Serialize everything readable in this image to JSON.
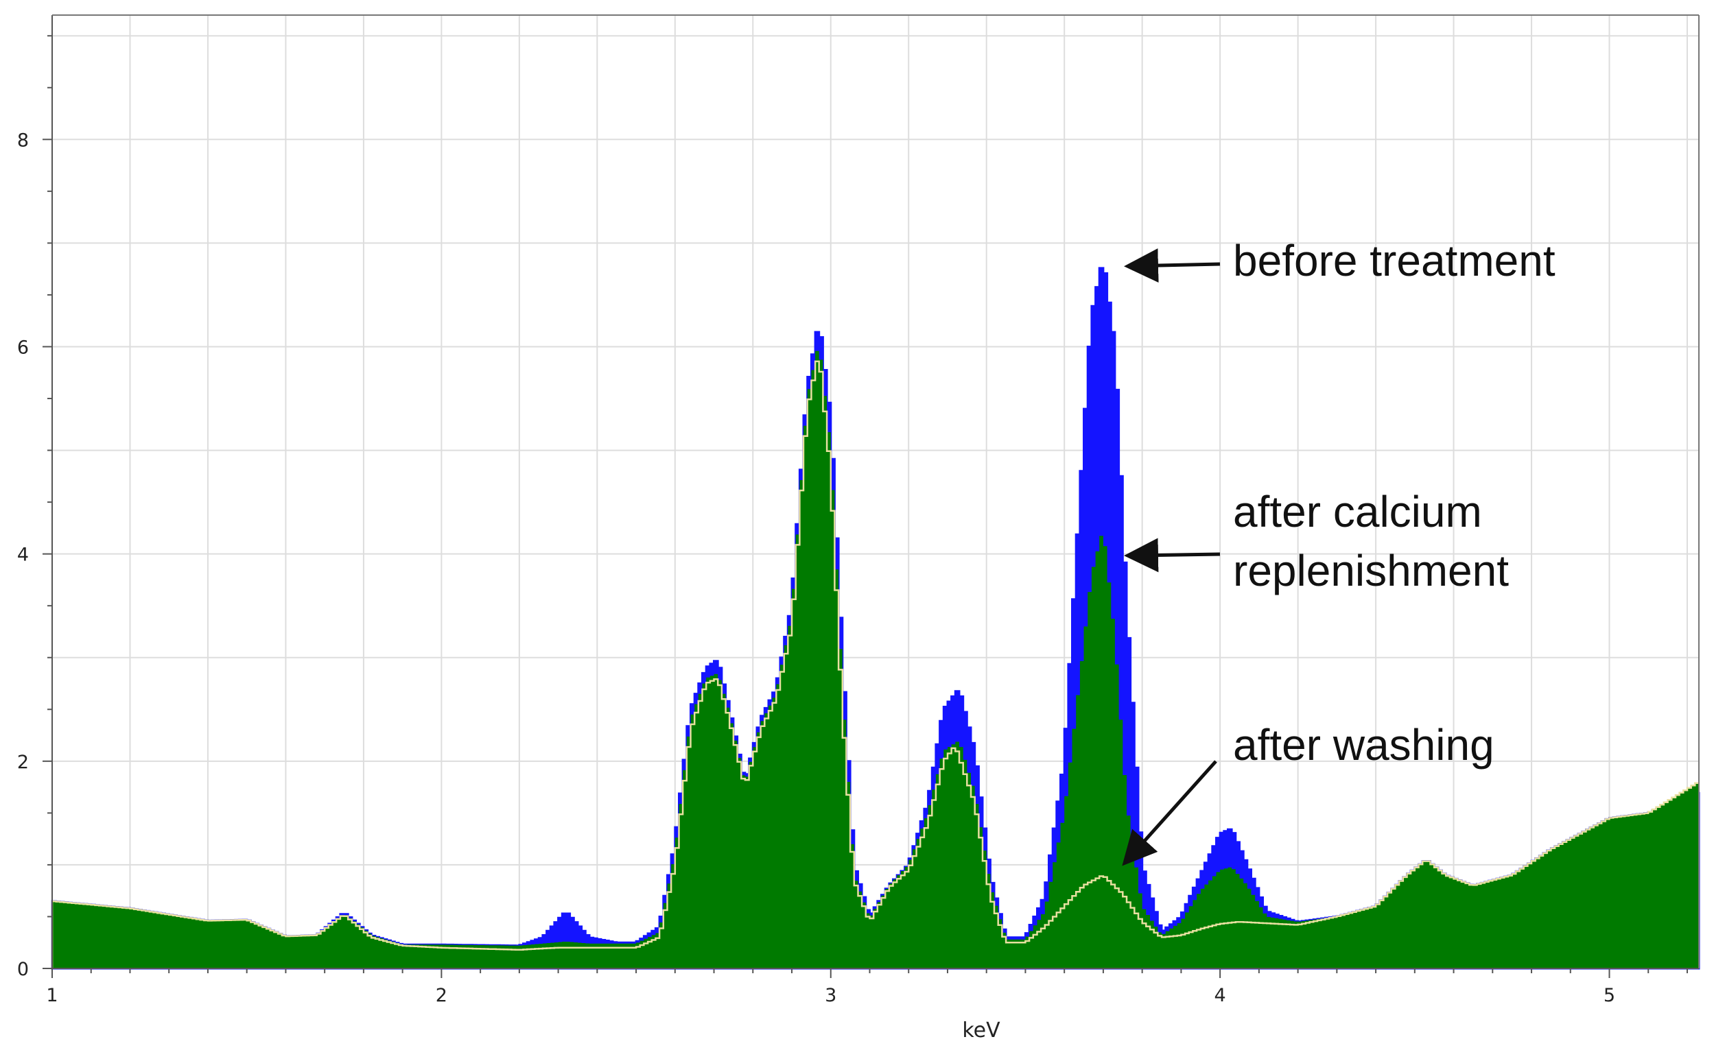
{
  "chart_data": {
    "type": "area",
    "title": "",
    "xlabel": "keV",
    "ylabel": "",
    "xlim": [
      1.0,
      5.23
    ],
    "ylim": [
      0,
      9.2
    ],
    "grid": true,
    "x_ticks": [
      1,
      2,
      3,
      4,
      5
    ],
    "y_ticks": [
      0,
      2,
      4,
      6,
      8
    ],
    "colors": {
      "before": "#1414ff",
      "calcium": "#007a00",
      "washing_line": "#e8e0a0"
    },
    "series": [
      {
        "name": "before treatment",
        "color": "#1414ff",
        "x": [
          1.0,
          1.2,
          1.4,
          1.5,
          1.6,
          1.68,
          1.75,
          1.82,
          1.9,
          2.0,
          2.2,
          2.26,
          2.32,
          2.38,
          2.45,
          2.5,
          2.56,
          2.6,
          2.64,
          2.68,
          2.71,
          2.74,
          2.78,
          2.82,
          2.86,
          2.9,
          2.94,
          2.97,
          3.0,
          3.03,
          3.06,
          3.1,
          3.15,
          3.2,
          3.25,
          3.29,
          3.33,
          3.37,
          3.41,
          3.45,
          3.5,
          3.55,
          3.6,
          3.64,
          3.67,
          3.7,
          3.73,
          3.76,
          3.8,
          3.85,
          3.9,
          3.95,
          4.0,
          4.03,
          4.07,
          4.12,
          4.2,
          4.3,
          4.4,
          4.48,
          4.53,
          4.58,
          4.65,
          4.75,
          4.85,
          5.0,
          5.1,
          5.23
        ],
        "y": [
          0.65,
          0.58,
          0.46,
          0.47,
          0.31,
          0.32,
          0.54,
          0.32,
          0.23,
          0.23,
          0.22,
          0.3,
          0.55,
          0.3,
          0.25,
          0.25,
          0.4,
          1.2,
          2.5,
          2.9,
          2.98,
          2.5,
          1.8,
          2.4,
          2.7,
          3.5,
          5.6,
          6.25,
          5.3,
          3.0,
          1.0,
          0.5,
          0.8,
          1.0,
          1.6,
          2.5,
          2.7,
          2.1,
          0.9,
          0.3,
          0.3,
          0.7,
          2.0,
          4.5,
          6.3,
          6.85,
          6.0,
          3.5,
          1.0,
          0.35,
          0.5,
          0.9,
          1.3,
          1.35,
          1.0,
          0.55,
          0.45,
          0.5,
          0.6,
          0.9,
          1.05,
          0.9,
          0.8,
          0.9,
          1.15,
          1.45,
          1.5,
          1.7
        ]
      },
      {
        "name": "after calcium replenishment",
        "color": "#007a00",
        "x": [
          1.0,
          1.2,
          1.4,
          1.5,
          1.6,
          1.68,
          1.75,
          1.82,
          1.9,
          2.0,
          2.2,
          2.26,
          2.32,
          2.38,
          2.45,
          2.5,
          2.56,
          2.6,
          2.64,
          2.68,
          2.71,
          2.74,
          2.78,
          2.82,
          2.86,
          2.9,
          2.94,
          2.97,
          3.0,
          3.03,
          3.06,
          3.1,
          3.15,
          3.2,
          3.25,
          3.29,
          3.33,
          3.37,
          3.41,
          3.45,
          3.5,
          3.55,
          3.6,
          3.64,
          3.67,
          3.7,
          3.73,
          3.76,
          3.8,
          3.85,
          3.9,
          3.95,
          4.0,
          4.03,
          4.07,
          4.12,
          4.2,
          4.3,
          4.4,
          4.48,
          4.53,
          4.58,
          4.65,
          4.75,
          4.85,
          5.0,
          5.1,
          5.23
        ],
        "y": [
          0.65,
          0.58,
          0.46,
          0.47,
          0.31,
          0.32,
          0.53,
          0.32,
          0.23,
          0.23,
          0.22,
          0.24,
          0.26,
          0.24,
          0.24,
          0.24,
          0.35,
          1.1,
          2.4,
          2.8,
          2.85,
          2.45,
          1.78,
          2.35,
          2.65,
          3.4,
          5.5,
          6.05,
          5.0,
          2.7,
          0.9,
          0.48,
          0.8,
          1.0,
          1.5,
          2.1,
          2.2,
          1.7,
          0.8,
          0.28,
          0.28,
          0.55,
          1.5,
          2.8,
          3.8,
          4.25,
          3.2,
          1.6,
          0.6,
          0.32,
          0.45,
          0.75,
          0.95,
          0.98,
          0.8,
          0.5,
          0.45,
          0.5,
          0.6,
          0.9,
          1.05,
          0.9,
          0.8,
          0.9,
          1.15,
          1.45,
          1.5,
          1.8
        ]
      },
      {
        "name": "after washing",
        "color": "#e8e0a0",
        "x": [
          1.0,
          1.2,
          1.4,
          1.5,
          1.6,
          1.68,
          1.75,
          1.82,
          1.9,
          2.0,
          2.2,
          2.3,
          2.4,
          2.5,
          2.56,
          2.6,
          2.64,
          2.68,
          2.71,
          2.74,
          2.78,
          2.82,
          2.86,
          2.9,
          2.94,
          2.97,
          3.0,
          3.03,
          3.06,
          3.1,
          3.15,
          3.2,
          3.25,
          3.29,
          3.32,
          3.37,
          3.41,
          3.45,
          3.5,
          3.55,
          3.6,
          3.65,
          3.7,
          3.75,
          3.8,
          3.85,
          3.9,
          3.95,
          4.0,
          4.05,
          4.1,
          4.2,
          4.3,
          4.4,
          4.48,
          4.53,
          4.58,
          4.65,
          4.75,
          4.85,
          5.0,
          5.1,
          5.23
        ],
        "y": [
          0.65,
          0.58,
          0.46,
          0.47,
          0.31,
          0.32,
          0.52,
          0.3,
          0.22,
          0.2,
          0.18,
          0.2,
          0.2,
          0.2,
          0.3,
          1.0,
          2.3,
          2.75,
          2.8,
          2.4,
          1.75,
          2.3,
          2.6,
          3.3,
          5.4,
          5.95,
          4.8,
          2.5,
          0.85,
          0.45,
          0.78,
          0.95,
          1.4,
          2.0,
          2.15,
          1.6,
          0.7,
          0.25,
          0.25,
          0.4,
          0.6,
          0.8,
          0.9,
          0.72,
          0.45,
          0.3,
          0.32,
          0.38,
          0.43,
          0.45,
          0.44,
          0.42,
          0.5,
          0.6,
          0.9,
          1.05,
          0.9,
          0.8,
          0.9,
          1.15,
          1.45,
          1.5,
          1.8
        ]
      }
    ],
    "annotations": [
      {
        "text": "before treatment"
      },
      {
        "text": "after calcium"
      },
      {
        "text": "replenishment"
      },
      {
        "text": "after washing"
      }
    ]
  }
}
